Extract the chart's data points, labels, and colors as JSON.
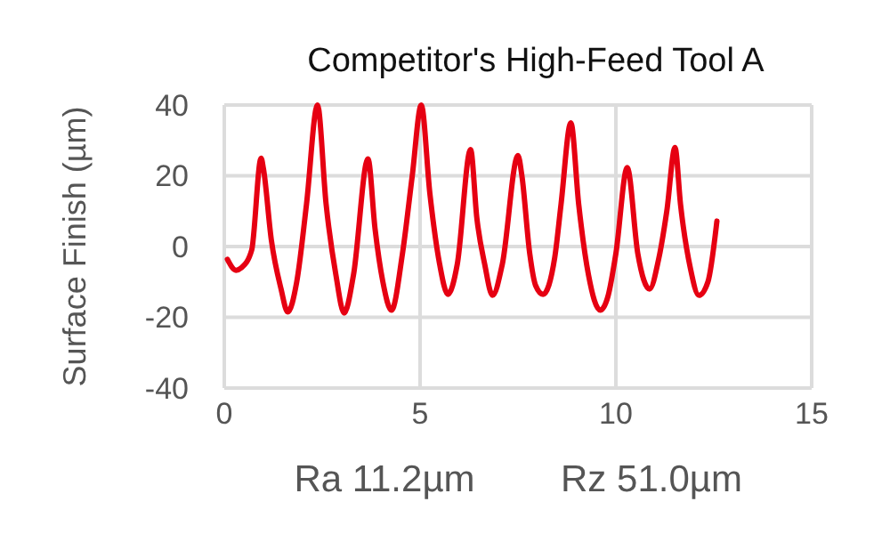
{
  "chart_data": {
    "type": "line",
    "title": "Competitor's High-Feed Tool A",
    "ylabel": "Surface Finish (µm)",
    "xlim": [
      0,
      15
    ],
    "xticks": [
      0,
      5,
      10,
      15
    ],
    "ylim": [
      -40,
      40
    ],
    "yticks": [
      40,
      20,
      0,
      -20,
      -40
    ],
    "grid": true,
    "annotations": [
      "Ra 11.2µm",
      "Rz 51.0µm"
    ],
    "series": [
      {
        "color": "#e60012",
        "x": [
          0.08,
          0.3,
          0.44,
          0.7,
          0.94,
          1.0,
          1.2,
          1.45,
          1.62,
          1.85,
          2.1,
          2.38,
          2.6,
          2.85,
          3.06,
          3.3,
          3.67,
          3.85,
          4.05,
          4.27,
          4.55,
          4.8,
          5.03,
          5.25,
          5.5,
          5.71,
          5.95,
          6.29,
          6.45,
          6.65,
          6.85,
          7.1,
          7.5,
          7.6,
          7.8,
          7.95,
          8.14,
          8.44,
          8.6,
          8.85,
          9.05,
          9.3,
          9.6,
          9.8,
          10.0,
          10.29,
          10.56,
          10.86,
          11.09,
          11.3,
          11.51,
          11.65,
          11.9,
          12.12,
          12.35,
          12.58
        ],
        "values": [
          -3.6,
          -6.7,
          -6,
          -1,
          25,
          22,
          2,
          -12,
          -18.5,
          -10,
          12,
          40,
          12,
          -8,
          -18.8,
          -8,
          24.8,
          5,
          -10,
          -18,
          -2,
          20,
          40,
          15,
          -5,
          -13.5,
          -5,
          27.4,
          8,
          -5,
          -13.8,
          -5,
          25.7,
          20,
          -2,
          -11,
          -13.5,
          -3,
          12,
          35,
          12,
          -8,
          -18,
          -14,
          -2,
          22.3,
          -2,
          -12,
          -3.7,
          10,
          28,
          12,
          -6,
          -13.8,
          -10,
          7.2
        ]
      }
    ]
  }
}
